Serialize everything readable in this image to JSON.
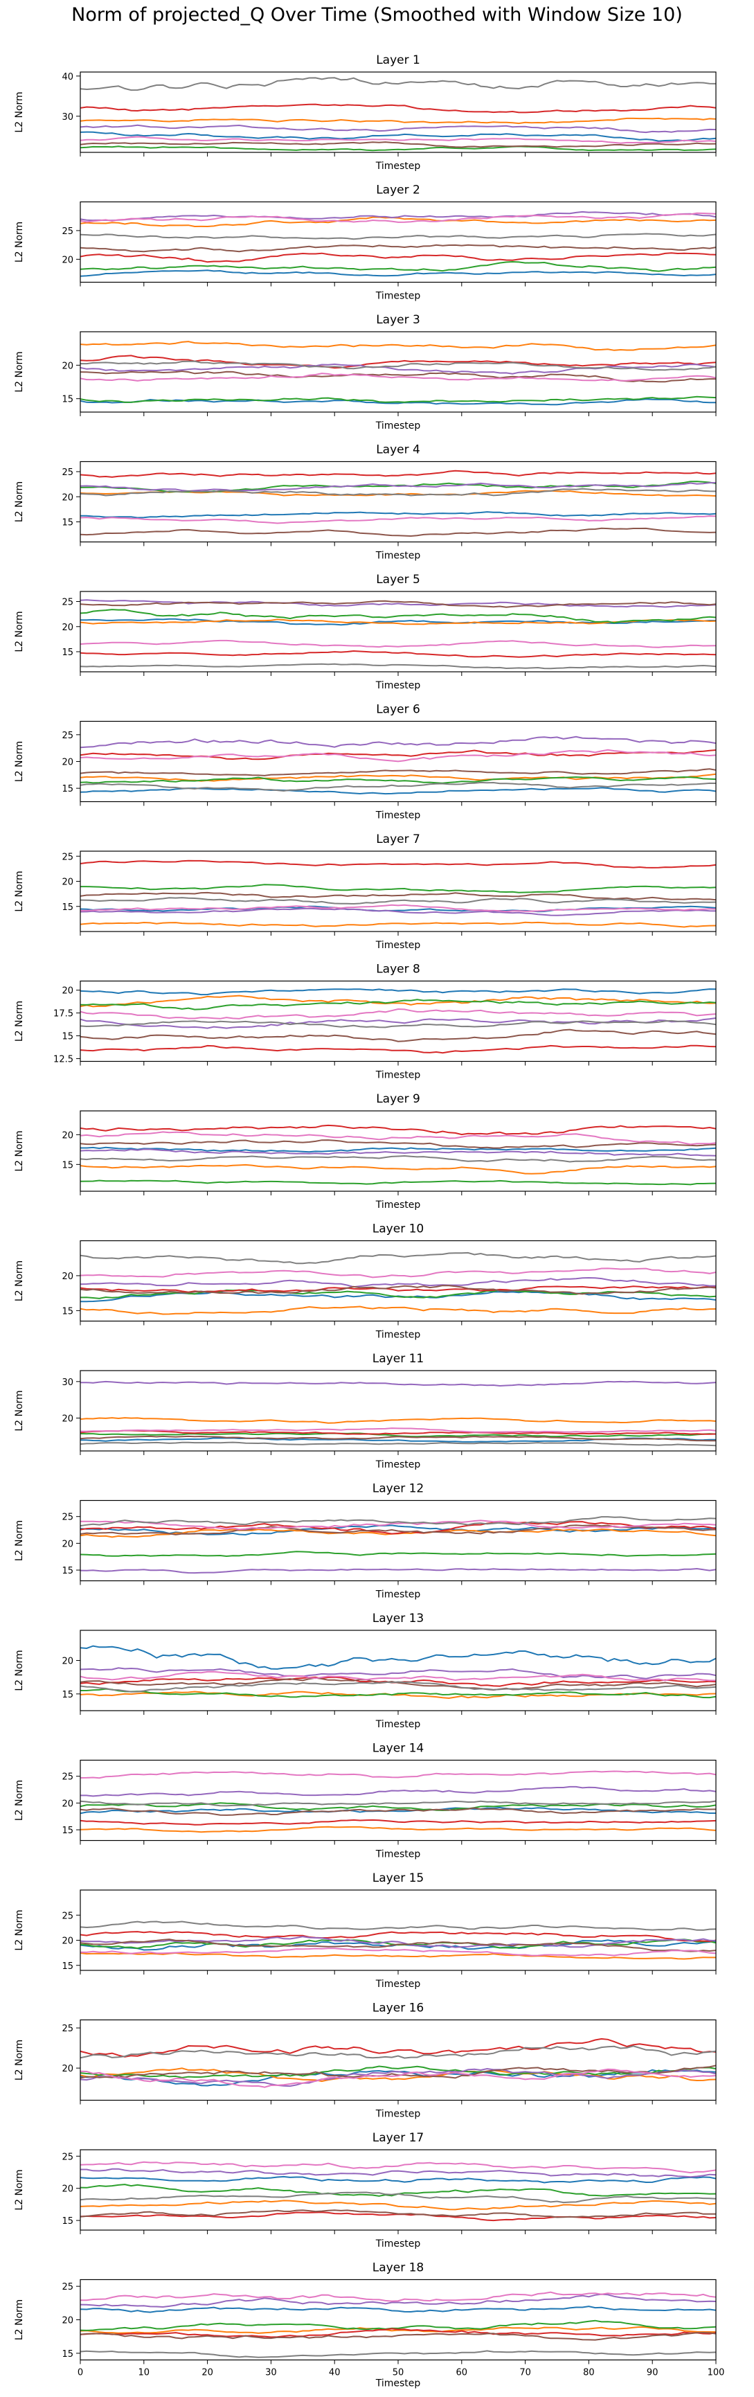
{
  "figure_title": "Norm of projected_Q Over Time (Smoothed with Window Size 10)",
  "colors": {
    "series": [
      "#1f77b4",
      "#ff7f0e",
      "#2ca02c",
      "#d62728",
      "#9467bd",
      "#8c564b",
      "#e377c2",
      "#7f7f7f"
    ],
    "axis": "#000000",
    "background": "#ffffff"
  },
  "chart_data": [
    {
      "type": "line",
      "title": "Layer 1",
      "xlabel": "Timestep",
      "ylabel": "L2 Norm",
      "xlim": [
        0,
        100
      ],
      "ylim": [
        21,
        41
      ],
      "yticks": [
        30,
        40
      ],
      "xticks": [],
      "base": [
        25,
        29,
        22,
        32,
        27,
        23,
        24,
        38
      ],
      "amp": [
        0.8,
        0.7,
        0.6,
        0.9,
        0.8,
        0.6,
        0.7,
        1.8
      ]
    },
    {
      "type": "line",
      "title": "Layer 2",
      "xlabel": "Timestep",
      "ylabel": "L2 Norm",
      "xlim": [
        0,
        100
      ],
      "ylim": [
        16,
        30
      ],
      "yticks": [
        20,
        25
      ],
      "xticks": [],
      "base": [
        17.5,
        26.5,
        18.5,
        20.5,
        27.5,
        22.0,
        27.0,
        24.0
      ],
      "amp": [
        0.5,
        0.6,
        0.7,
        0.8,
        0.6,
        0.7,
        0.7,
        0.6
      ]
    },
    {
      "type": "line",
      "title": "Layer 3",
      "xlabel": "Timestep",
      "ylabel": "L2 Norm",
      "xlim": [
        0,
        100
      ],
      "ylim": [
        13,
        25
      ],
      "yticks": [
        15,
        20
      ],
      "xticks": [],
      "base": [
        14.5,
        23.0,
        14.8,
        20.5,
        19.5,
        18.5,
        18.0,
        20.0
      ],
      "amp": [
        0.5,
        0.6,
        0.5,
        0.6,
        0.6,
        0.6,
        0.6,
        0.6
      ]
    },
    {
      "type": "line",
      "title": "Layer 4",
      "xlabel": "Timestep",
      "ylabel": "L2 Norm",
      "xlim": [
        0,
        100
      ],
      "ylim": [
        11,
        27
      ],
      "yticks": [
        15,
        20,
        25
      ],
      "xticks": [],
      "base": [
        16.5,
        20.5,
        22.0,
        24.5,
        22.0,
        13.0,
        15.5,
        21.0
      ],
      "amp": [
        0.5,
        0.6,
        0.7,
        0.7,
        0.7,
        0.5,
        0.5,
        0.7
      ]
    },
    {
      "type": "line",
      "title": "Layer 5",
      "xlabel": "Timestep",
      "ylabel": "L2 Norm",
      "xlim": [
        0,
        100
      ],
      "ylim": [
        11,
        27
      ],
      "yticks": [
        15,
        20,
        25
      ],
      "xticks": [],
      "base": [
        21.0,
        21.0,
        22.0,
        14.5,
        24.5,
        24.5,
        16.5,
        12.0
      ],
      "amp": [
        0.6,
        0.6,
        0.9,
        0.5,
        0.6,
        0.6,
        0.5,
        0.4
      ]
    },
    {
      "type": "line",
      "title": "Layer 6",
      "xlabel": "Timestep",
      "ylabel": "L2 Norm",
      "xlim": [
        0,
        100
      ],
      "ylim": [
        12.5,
        27.5
      ],
      "yticks": [
        15,
        20,
        25
      ],
      "xticks": [],
      "base": [
        14.5,
        17.0,
        16.5,
        21.5,
        23.5,
        18.0,
        21.0,
        15.5
      ],
      "amp": [
        0.5,
        0.6,
        0.6,
        0.7,
        1.1,
        0.6,
        0.7,
        0.6
      ]
    },
    {
      "type": "line",
      "title": "Layer 7",
      "xlabel": "Timestep",
      "ylabel": "L2 Norm",
      "xlim": [
        0,
        100
      ],
      "ylim": [
        10,
        26
      ],
      "yticks": [
        15,
        20,
        25
      ],
      "xticks": [],
      "base": [
        14.5,
        11.5,
        18.5,
        23.5,
        14.0,
        17.0,
        14.5,
        16.0
      ],
      "amp": [
        0.5,
        0.5,
        0.6,
        0.6,
        0.5,
        0.6,
        0.5,
        0.6
      ]
    },
    {
      "type": "line",
      "title": "Layer 8",
      "xlabel": "Timestep",
      "ylabel": "L2 Norm",
      "xlim": [
        0,
        100
      ],
      "ylim": [
        12.2,
        21.0
      ],
      "yticks": [
        12.5,
        15.0,
        17.5,
        20.0
      ],
      "xticks": [],
      "base": [
        19.8,
        18.8,
        18.5,
        13.5,
        16.5,
        15.0,
        17.5,
        16.3
      ],
      "amp": [
        0.4,
        0.5,
        0.5,
        0.4,
        0.5,
        0.5,
        0.5,
        0.4
      ]
    },
    {
      "type": "line",
      "title": "Layer 9",
      "xlabel": "Timestep",
      "ylabel": "L2 Norm",
      "xlim": [
        0,
        100
      ],
      "ylim": [
        10.5,
        24.0
      ],
      "yticks": [
        15,
        20
      ],
      "xticks": [],
      "base": [
        17.5,
        14.5,
        12.0,
        21.0,
        17.0,
        18.5,
        19.5,
        16.0
      ],
      "amp": [
        0.5,
        0.5,
        0.4,
        0.8,
        0.6,
        0.6,
        0.7,
        0.5
      ]
    },
    {
      "type": "line",
      "title": "Layer 10",
      "xlabel": "Timestep",
      "ylabel": "L2 Norm",
      "xlim": [
        0,
        100
      ],
      "ylim": [
        13.5,
        25.0
      ],
      "yticks": [
        15,
        20
      ],
      "xticks": [],
      "base": [
        17.0,
        15.0,
        17.5,
        18.0,
        19.0,
        18.0,
        20.5,
        22.5
      ],
      "amp": [
        0.6,
        0.6,
        0.6,
        0.6,
        0.6,
        0.6,
        0.6,
        0.7
      ]
    },
    {
      "type": "line",
      "title": "Layer 11",
      "xlabel": "Timestep",
      "ylabel": "L2 Norm",
      "xlim": [
        0,
        100
      ],
      "ylim": [
        11,
        33
      ],
      "yticks": [
        20,
        30
      ],
      "xticks": [],
      "base": [
        14.0,
        19.5,
        15.5,
        16.0,
        29.5,
        14.5,
        16.5,
        13.0
      ],
      "amp": [
        0.5,
        0.7,
        0.6,
        0.6,
        0.8,
        0.5,
        0.6,
        0.4
      ]
    },
    {
      "type": "line",
      "title": "Layer 12",
      "xlabel": "Timestep",
      "ylabel": "L2 Norm",
      "xlim": [
        0,
        100
      ],
      "ylim": [
        13,
        28
      ],
      "yticks": [
        15,
        20,
        25
      ],
      "xticks": [],
      "base": [
        22.5,
        22.0,
        18.0,
        23.0,
        15.0,
        22.5,
        23.5,
        24.0
      ],
      "amp": [
        0.8,
        0.8,
        0.5,
        0.9,
        0.5,
        0.8,
        0.8,
        0.8
      ]
    },
    {
      "type": "line",
      "title": "Layer 13",
      "xlabel": "Timestep",
      "ylabel": "L2 Norm",
      "xlim": [
        0,
        100
      ],
      "ylim": [
        12.5,
        24.5
      ],
      "yticks": [
        15,
        20
      ],
      "xticks": [],
      "base": [
        20.5,
        15.0,
        15.0,
        17.0,
        18.0,
        16.5,
        17.5,
        16.0
      ],
      "amp": [
        1.4,
        0.6,
        0.6,
        0.7,
        0.7,
        0.6,
        0.7,
        0.6
      ]
    },
    {
      "type": "line",
      "title": "Layer 14",
      "xlabel": "Timestep",
      "ylabel": "L2 Norm",
      "xlim": [
        0,
        100
      ],
      "ylim": [
        13,
        28
      ],
      "yticks": [
        15,
        20,
        25
      ],
      "xticks": [],
      "base": [
        18.5,
        15.0,
        19.5,
        16.5,
        22.0,
        18.5,
        25.5,
        20.0
      ],
      "amp": [
        0.6,
        0.4,
        0.7,
        0.5,
        0.8,
        0.6,
        0.7,
        0.6
      ]
    },
    {
      "type": "line",
      "title": "Layer 15",
      "xlabel": "Timestep",
      "ylabel": "L2 Norm",
      "xlim": [
        0,
        100
      ],
      "ylim": [
        14,
        30
      ],
      "yticks": [
        15,
        20,
        25
      ],
      "xticks": [],
      "base": [
        19.0,
        17.0,
        19.5,
        21.0,
        19.5,
        19.0,
        17.5,
        22.5
      ],
      "amp": [
        1.2,
        0.6,
        0.9,
        0.8,
        0.9,
        0.8,
        0.6,
        0.8
      ]
    },
    {
      "type": "line",
      "title": "Layer 16",
      "xlabel": "Timestep",
      "ylabel": "L2 Norm",
      "xlim": [
        0,
        100
      ],
      "ylim": [
        16,
        26
      ],
      "yticks": [
        20,
        25
      ],
      "xticks": [],
      "base": [
        19.0,
        19.0,
        19.5,
        22.5,
        19.0,
        19.5,
        19.0,
        22.0
      ],
      "amp": [
        0.8,
        0.7,
        0.8,
        0.9,
        0.8,
        0.8,
        0.8,
        0.8
      ]
    },
    {
      "type": "line",
      "title": "Layer 17",
      "xlabel": "Timestep",
      "ylabel": "L2 Norm",
      "xlim": [
        0,
        100
      ],
      "ylim": [
        13.5,
        26.0
      ],
      "yticks": [
        15,
        20,
        25
      ],
      "xticks": [],
      "base": [
        21.5,
        17.5,
        19.5,
        15.5,
        22.5,
        16.0,
        23.5,
        18.5
      ],
      "amp": [
        0.7,
        0.6,
        0.7,
        0.5,
        0.7,
        0.6,
        0.7,
        0.6
      ]
    },
    {
      "type": "line",
      "title": "Layer 18",
      "xlabel": "Timestep",
      "ylabel": "L2 Norm",
      "xlim": [
        0,
        100
      ],
      "ylim": [
        14,
        26
      ],
      "yticks": [
        15,
        20,
        25
      ],
      "xticks": [
        0,
        10,
        20,
        30,
        40,
        50,
        60,
        70,
        80,
        90,
        100
      ],
      "base": [
        21.5,
        18.5,
        19.0,
        18.0,
        22.5,
        17.5,
        23.5,
        15.0
      ],
      "amp": [
        0.6,
        0.6,
        0.6,
        0.6,
        0.8,
        0.6,
        0.8,
        0.4
      ]
    }
  ]
}
